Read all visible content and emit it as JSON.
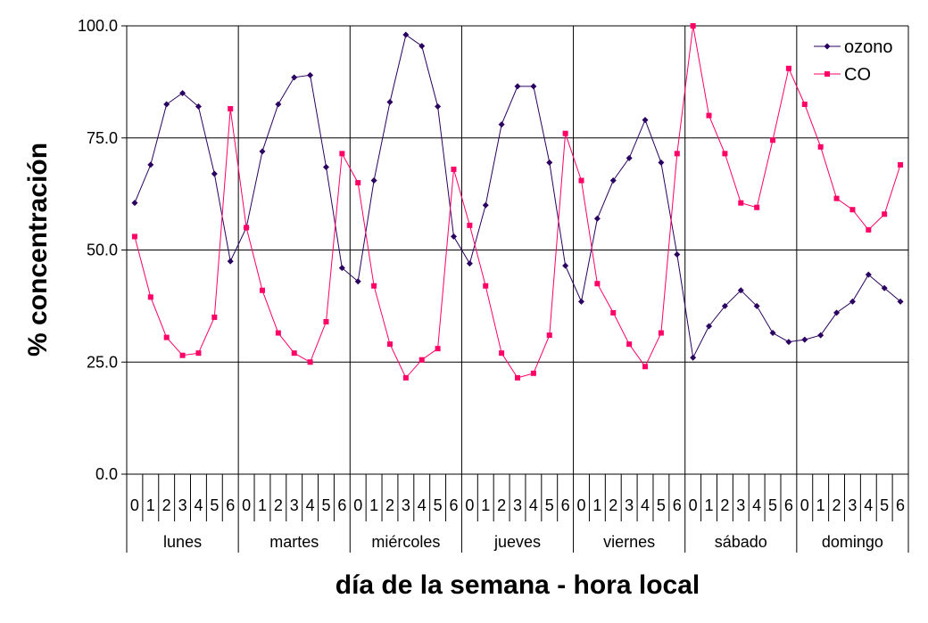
{
  "chart_data": {
    "type": "line",
    "xlabel": "día de la semana - hora local",
    "ylabel": "% concentración",
    "ylim": [
      0,
      100
    ],
    "yticks": [
      "0.0",
      "25.0",
      "50.0",
      "75.0",
      "100.0"
    ],
    "yticks_values": [
      0,
      25,
      50,
      75,
      100
    ],
    "grid": "horizontal",
    "legend_position": "top-right",
    "hours": [
      "0",
      "1",
      "2",
      "3",
      "4",
      "5",
      "6"
    ],
    "days": [
      "lunes",
      "martes",
      "miércoles",
      "jueves",
      "viernes",
      "sábado",
      "domingo"
    ],
    "series": [
      {
        "name": "ozono",
        "color": "#2a0060",
        "marker": "diamond",
        "values": [
          [
            60.5,
            69.0,
            82.5,
            85.0,
            82.0,
            67.0,
            47.5
          ],
          [
            55.0,
            72.0,
            82.5,
            88.5,
            89.0,
            68.5,
            46.0
          ],
          [
            43.0,
            65.5,
            83.0,
            98.0,
            95.5,
            82.0,
            53.0
          ],
          [
            47.0,
            60.0,
            78.0,
            86.5,
            86.5,
            69.5,
            46.5
          ],
          [
            38.5,
            57.0,
            65.5,
            70.5,
            79.0,
            69.5,
            49.0
          ],
          [
            26.0,
            33.0,
            37.5,
            41.0,
            37.5,
            31.5,
            29.5
          ],
          [
            30.0,
            31.0,
            36.0,
            38.5,
            44.5,
            41.5,
            38.5
          ]
        ]
      },
      {
        "name": "CO",
        "color": "#ff0066",
        "marker": "square",
        "values": [
          [
            53.0,
            39.5,
            30.5,
            26.5,
            27.0,
            35.0,
            81.5
          ],
          [
            55.0,
            41.0,
            31.5,
            27.0,
            25.0,
            34.0,
            71.5
          ],
          [
            65.0,
            42.0,
            29.0,
            21.5,
            25.5,
            28.0,
            68.0
          ],
          [
            55.5,
            42.0,
            27.0,
            21.5,
            22.5,
            31.0,
            76.0
          ],
          [
            65.5,
            42.5,
            36.0,
            29.0,
            24.0,
            31.5,
            71.5
          ],
          [
            100.0,
            80.0,
            71.5,
            60.5,
            59.5,
            74.5,
            90.5
          ],
          [
            82.5,
            73.0,
            61.5,
            59.0,
            54.5,
            58.0,
            69.0
          ]
        ]
      }
    ]
  }
}
